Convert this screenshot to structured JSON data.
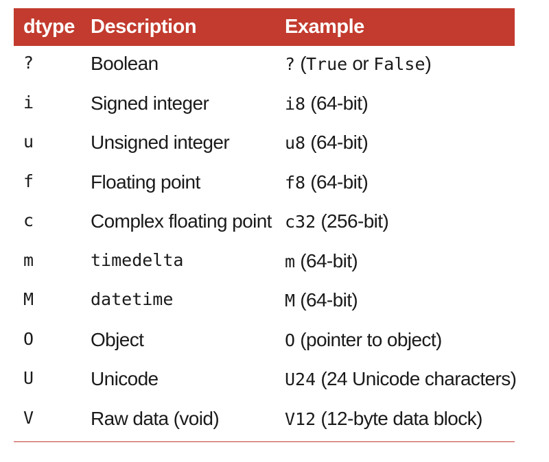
{
  "header": {
    "col_dtype": "dtype",
    "col_description": "Description",
    "col_example": "Example"
  },
  "rows": [
    {
      "code": "?",
      "description": "Boolean",
      "description_mono": false,
      "example": [
        {
          "t": "?",
          "m": true
        },
        {
          "t": " (",
          "m": false
        },
        {
          "t": "True",
          "m": true
        },
        {
          "t": " or ",
          "m": false
        },
        {
          "t": "False",
          "m": true
        },
        {
          "t": ")",
          "m": false
        }
      ]
    },
    {
      "code": "i",
      "description": "Signed integer",
      "description_mono": false,
      "example": [
        {
          "t": "i8",
          "m": true
        },
        {
          "t": " (64-bit)",
          "m": false
        }
      ]
    },
    {
      "code": "u",
      "description": "Unsigned integer",
      "description_mono": false,
      "example": [
        {
          "t": "u8",
          "m": true
        },
        {
          "t": " (64-bit)",
          "m": false
        }
      ]
    },
    {
      "code": "f",
      "description": "Floating point",
      "description_mono": false,
      "example": [
        {
          "t": "f8",
          "m": true
        },
        {
          "t": " (64-bit)",
          "m": false
        }
      ]
    },
    {
      "code": "c",
      "description": "Complex floating point",
      "description_mono": false,
      "example": [
        {
          "t": "c32",
          "m": true
        },
        {
          "t": " (256-bit)",
          "m": false
        }
      ]
    },
    {
      "code": "m",
      "description": "timedelta",
      "description_mono": true,
      "example": [
        {
          "t": "m",
          "m": true
        },
        {
          "t": " (64-bit)",
          "m": false
        }
      ]
    },
    {
      "code": "M",
      "description": "datetime",
      "description_mono": true,
      "example": [
        {
          "t": "M",
          "m": true
        },
        {
          "t": " (64-bit)",
          "m": false
        }
      ]
    },
    {
      "code": "O",
      "description": "Object",
      "description_mono": false,
      "example": [
        {
          "t": "O",
          "m": true
        },
        {
          "t": " (pointer to object)",
          "m": false
        }
      ]
    },
    {
      "code": "U",
      "description": "Unicode",
      "description_mono": false,
      "example": [
        {
          "t": "U24",
          "m": true
        },
        {
          "t": " (24 Unicode characters)",
          "m": false
        }
      ]
    },
    {
      "code": "V",
      "description": "Raw data (void)",
      "description_mono": false,
      "example": [
        {
          "t": "V12",
          "m": true
        },
        {
          "t": " (12-byte data block)",
          "m": false
        }
      ]
    }
  ],
  "colors": {
    "header_bg": "#c23b2e",
    "header_text": "#ffffff",
    "rule": "#c23b2e"
  }
}
